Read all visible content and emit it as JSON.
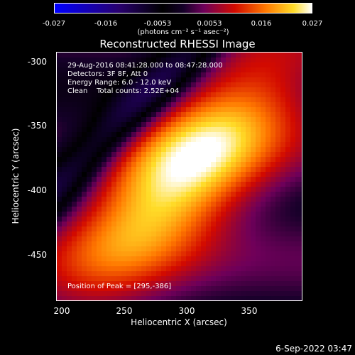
{
  "colorbar": {
    "ticks": [
      "-0.027",
      "-0.016",
      "-0.0053",
      "0.0053",
      "0.016",
      "0.027"
    ],
    "units": "(photons cm⁻² s⁻¹ asec⁻²)"
  },
  "title": "Reconstructed RHESSI Image",
  "annotations": {
    "time_range": "29-Aug-2016 08:41:28.000 to 08:47:28.000",
    "detectors": "Detectors: 3F 8F, Att 0",
    "energy": "Energy Range: 6.0 - 12.0 keV",
    "clean": "Clean    Total counts: 2.52E+04",
    "peak": "Position of Peak = [295,-386]"
  },
  "axes": {
    "xlabel": "Heliocentric X (arcsec)",
    "ylabel": "Heliocentric Y (arcsec)",
    "xticks": [
      "200",
      "250",
      "300",
      "350"
    ],
    "yticks": [
      "-300",
      "-350",
      "-400",
      "-450"
    ]
  },
  "footer": {
    "timestamp": "6-Sep-2022 03:47"
  },
  "colors": {
    "background": "#000000",
    "text": "#ffffff"
  },
  "chart_data": {
    "type": "heatmap",
    "title": "Reconstructed RHESSI Image",
    "xlabel": "Heliocentric X (arcsec)",
    "ylabel": "Heliocentric Y (arcsec)",
    "xlim": [
      197,
      388
    ],
    "ylim": [
      -484,
      -291
    ],
    "clim": [
      -0.027,
      0.027
    ],
    "peak": [
      295,
      -386
    ]
  }
}
